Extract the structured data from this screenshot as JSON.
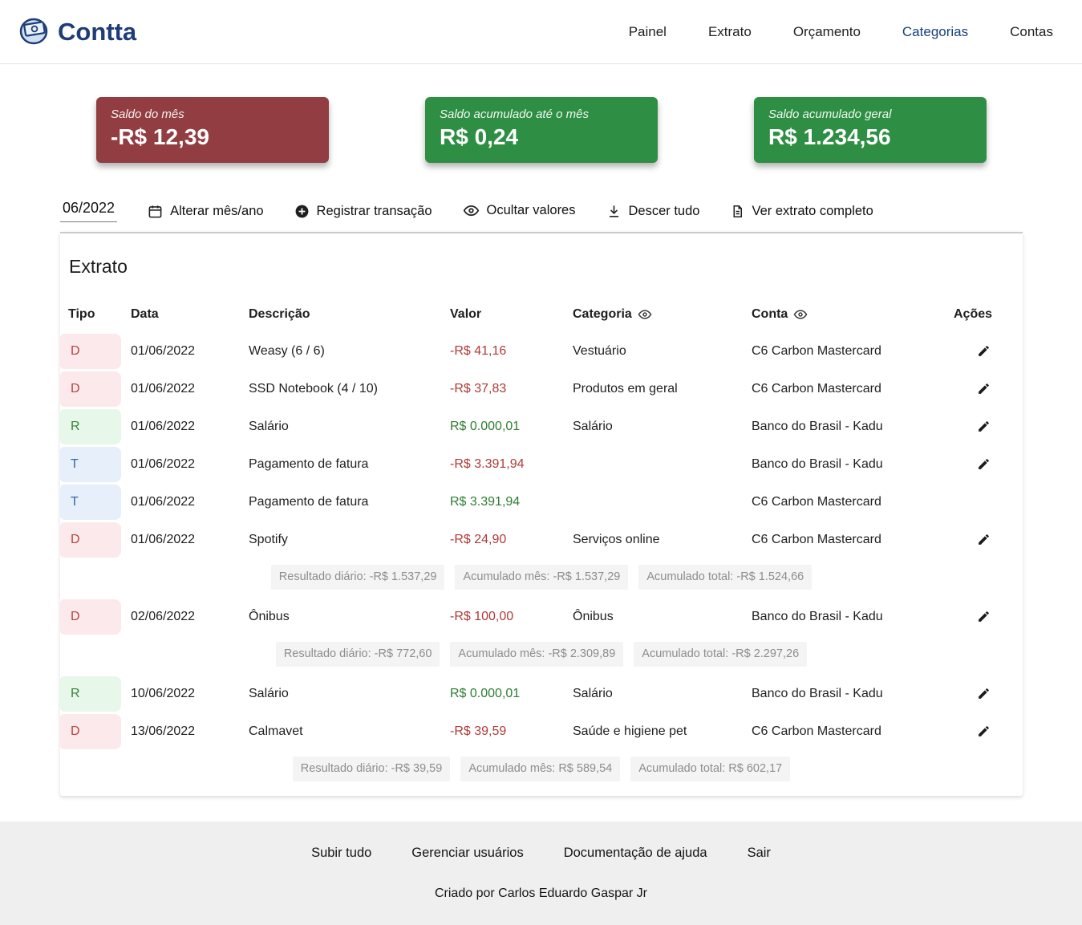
{
  "colors": {
    "brand_navy": "#1d3c78",
    "card_negative_bg": "#913d41",
    "card_positive_bg": "#2e8f44",
    "value_negative": "#ae3b37",
    "value_positive": "#2e7d32",
    "type_despesa_bg": "#fce9ec",
    "type_receita_bg": "#e7f7e9",
    "type_transferencia_bg": "#e6effa"
  },
  "header": {
    "brand": "Contta",
    "nav": [
      {
        "label": "Painel",
        "active": false
      },
      {
        "label": "Extrato",
        "active": false
      },
      {
        "label": "Orçamento",
        "active": false
      },
      {
        "label": "Categorias",
        "active": true
      },
      {
        "label": "Contas",
        "active": false
      }
    ]
  },
  "summary_cards": [
    {
      "label": "Saldo do mês",
      "value": "-R$ 12,39",
      "tone": "negative"
    },
    {
      "label": "Saldo acumulado até o mês",
      "value": "R$ 0,24",
      "tone": "positive"
    },
    {
      "label": "Saldo acumulado geral",
      "value": "R$ 1.234,56",
      "tone": "positive"
    }
  ],
  "toolbar": {
    "month": "06/2022",
    "actions": [
      {
        "label": "Alterar mês/ano",
        "icon": "calendar-icon"
      },
      {
        "label": "Registrar transação",
        "icon": "plus-circle-icon"
      },
      {
        "label": "Ocultar valores",
        "icon": "eye-icon"
      },
      {
        "label": "Descer tudo",
        "icon": "descend-icon"
      },
      {
        "label": "Ver extrato completo",
        "icon": "document-icon"
      }
    ]
  },
  "extrato": {
    "title": "Extrato",
    "columns": [
      {
        "label": "Tipo",
        "eye": false
      },
      {
        "label": "Data",
        "eye": false
      },
      {
        "label": "Descrição",
        "eye": false
      },
      {
        "label": "Valor",
        "eye": false
      },
      {
        "label": "Categoria",
        "eye": true
      },
      {
        "label": "Conta",
        "eye": true
      },
      {
        "label": "Ações",
        "eye": false
      }
    ],
    "rows": [
      {
        "kind": "tx",
        "type": "D",
        "date": "01/06/2022",
        "desc": "Weasy (6 / 6)",
        "value": "-R$ 41,16",
        "tone": "neg",
        "category": "Vestuário",
        "account": "C6 Carbon Mastercard",
        "editable": true
      },
      {
        "kind": "tx",
        "type": "D",
        "date": "01/06/2022",
        "desc": "SSD Notebook (4 / 10)",
        "value": "-R$ 37,83",
        "tone": "neg",
        "category": "Produtos em geral",
        "account": "C6 Carbon Mastercard",
        "editable": true
      },
      {
        "kind": "tx",
        "type": "R",
        "date": "01/06/2022",
        "desc": "Salário",
        "value": "R$ 0.000,01",
        "tone": "pos",
        "category": "Salário",
        "account": "Banco do Brasil - Kadu",
        "editable": true
      },
      {
        "kind": "tx",
        "type": "T",
        "date": "01/06/2022",
        "desc": "Pagamento de fatura",
        "value": "-R$ 3.391,94",
        "tone": "neg",
        "category": "",
        "account": "Banco do Brasil - Kadu",
        "editable": true
      },
      {
        "kind": "tx",
        "type": "T",
        "date": "01/06/2022",
        "desc": "Pagamento de fatura",
        "value": "R$ 3.391,94",
        "tone": "pos",
        "category": "",
        "account": "C6 Carbon Mastercard",
        "editable": false
      },
      {
        "kind": "tx",
        "type": "D",
        "date": "01/06/2022",
        "desc": "Spotify",
        "value": "-R$ 24,90",
        "tone": "neg",
        "category": "Serviços online",
        "account": "C6 Carbon Mastercard",
        "editable": true
      },
      {
        "kind": "summary",
        "pills": [
          "Resultado diário: -R$ 1.537,29",
          "Acumulado mês: -R$ 1.537,29",
          "Acumulado total: -R$ 1.524,66"
        ]
      },
      {
        "kind": "tx",
        "type": "D",
        "date": "02/06/2022",
        "desc": "Ônibus",
        "value": "-R$ 100,00",
        "tone": "neg",
        "category": "Ônibus",
        "account": "Banco do Brasil - Kadu",
        "editable": true
      },
      {
        "kind": "summary",
        "pills": [
          "Resultado diário: -R$ 772,60",
          "Acumulado mês: -R$ 2.309,89",
          "Acumulado total: -R$ 2.297,26"
        ]
      },
      {
        "kind": "tx",
        "type": "R",
        "date": "10/06/2022",
        "desc": "Salário",
        "value": "R$ 0.000,01",
        "tone": "pos",
        "category": "Salário",
        "account": "Banco do Brasil - Kadu",
        "editable": true
      },
      {
        "kind": "tx",
        "type": "D",
        "date": "13/06/2022",
        "desc": "Calmavet",
        "value": "-R$ 39,59",
        "tone": "neg",
        "category": "Saúde e higiene pet",
        "account": "C6 Carbon Mastercard",
        "editable": true
      },
      {
        "kind": "summary",
        "pills": [
          "Resultado diário: -R$ 39,59",
          "Acumulado mês: R$ 589,54",
          "Acumulado total: R$ 602,17"
        ]
      }
    ]
  },
  "footer": {
    "links": [
      "Subir tudo",
      "Gerenciar usuários",
      "Documentação de ajuda",
      "Sair"
    ],
    "credit": "Criado por Carlos Eduardo Gaspar Jr"
  }
}
